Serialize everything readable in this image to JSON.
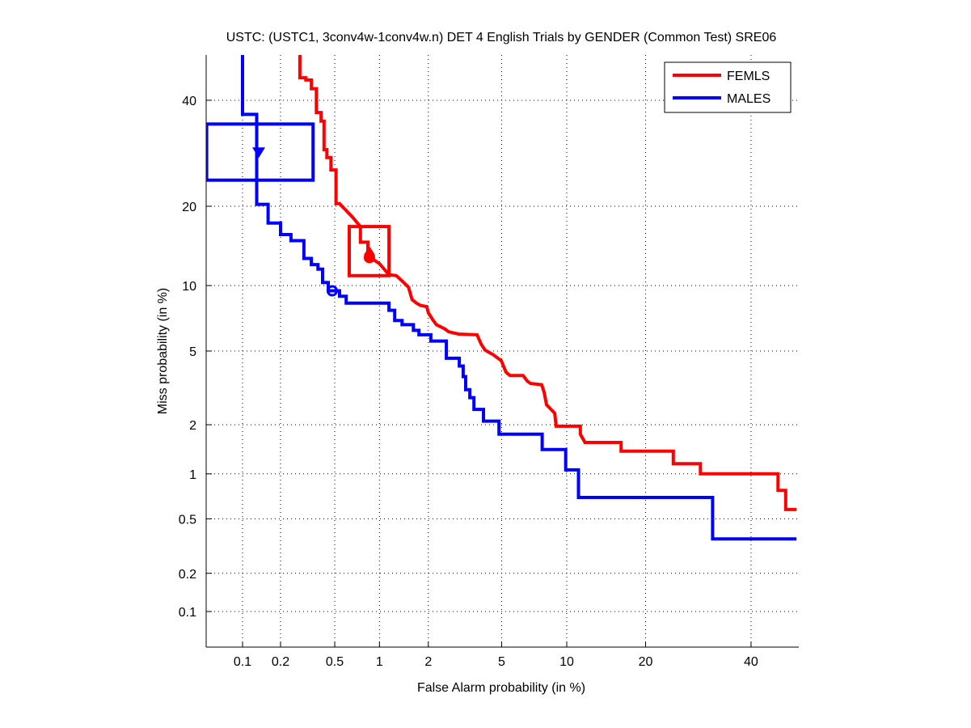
{
  "chart_data": {
    "type": "line",
    "title": "USTC: (USTC1, 3conv4w-1conv4w.n) DET 4 English Trials by GENDER (Common Test) SRE06",
    "xlabel": "False Alarm probability (in %)",
    "ylabel": "Miss probability (in %)",
    "xscale": "normal-deviate",
    "yscale": "normal-deviate",
    "xlim": [
      0.05,
      50
    ],
    "ylim": [
      0.05,
      50
    ],
    "grid": true,
    "xticks": [
      0.1,
      0.2,
      0.5,
      1,
      2,
      5,
      10,
      20,
      40
    ],
    "xtick_labels": [
      "0.1",
      "0.2",
      "0.5",
      "1",
      "2",
      "5",
      "10",
      "20",
      "40"
    ],
    "yticks": [
      0.1,
      0.2,
      0.5,
      1,
      2,
      5,
      10,
      20,
      40
    ],
    "ytick_labels": [
      "0.1",
      "0.2",
      "0.5",
      "1",
      "2",
      "5",
      "10",
      "20",
      "40"
    ],
    "legend_position": "top-right",
    "series": [
      {
        "name": "FEMLS",
        "color": "#ff0000",
        "points": [
          [
            0.28,
            50
          ],
          [
            0.28,
            44.9
          ],
          [
            0.31,
            44.9
          ],
          [
            0.31,
            44.4
          ],
          [
            0.34,
            44.4
          ],
          [
            0.34,
            42.5
          ],
          [
            0.37,
            42.5
          ],
          [
            0.37,
            37.4
          ],
          [
            0.4,
            37.4
          ],
          [
            0.4,
            35.6
          ],
          [
            0.42,
            35.6
          ],
          [
            0.42,
            29.9
          ],
          [
            0.44,
            29.9
          ],
          [
            0.44,
            28.4
          ],
          [
            0.47,
            28.4
          ],
          [
            0.47,
            26.1
          ],
          [
            0.51,
            26.1
          ],
          [
            0.51,
            20.4
          ],
          [
            0.54,
            20.4
          ],
          [
            0.66,
            18.4
          ],
          [
            0.75,
            17.0
          ],
          [
            0.75,
            14.9
          ],
          [
            0.84,
            14.9
          ],
          [
            0.84,
            13.4
          ],
          [
            0.89,
            12.9
          ],
          [
            1.0,
            12.3
          ],
          [
            1.15,
            11.1
          ],
          [
            1.28,
            11.0
          ],
          [
            1.4,
            10.4
          ],
          [
            1.52,
            9.85
          ],
          [
            1.6,
            8.7
          ],
          [
            1.7,
            8.4
          ],
          [
            1.8,
            8.2
          ],
          [
            1.96,
            8.1
          ],
          [
            2.0,
            7.6
          ],
          [
            2.14,
            7.0
          ],
          [
            2.23,
            6.7
          ],
          [
            2.49,
            6.4
          ],
          [
            2.62,
            6.2
          ],
          [
            2.97,
            6.05
          ],
          [
            3.74,
            6.0
          ],
          [
            3.93,
            5.4
          ],
          [
            4.12,
            5.05
          ],
          [
            4.53,
            4.8
          ],
          [
            4.98,
            4.47
          ],
          [
            5.26,
            3.9
          ],
          [
            5.5,
            3.75
          ],
          [
            6.36,
            3.75
          ],
          [
            6.66,
            3.5
          ],
          [
            6.9,
            3.4
          ],
          [
            7.76,
            3.35
          ],
          [
            7.96,
            3.05
          ],
          [
            8.16,
            2.6
          ],
          [
            8.87,
            2.33
          ],
          [
            9.0,
            1.96
          ],
          [
            11.4,
            1.96
          ],
          [
            11.4,
            1.76
          ],
          [
            11.9,
            1.57
          ],
          [
            16.4,
            1.57
          ],
          [
            16.4,
            1.39
          ],
          [
            24.6,
            1.39
          ],
          [
            24.6,
            1.16
          ],
          [
            29.6,
            1.16
          ],
          [
            29.6,
            1.0
          ],
          [
            45.9,
            1.0
          ],
          [
            45.9,
            0.78
          ],
          [
            47.6,
            0.78
          ],
          [
            47.6,
            0.58
          ],
          [
            50,
            0.58
          ]
        ],
        "confidence_box": {
          "fa": [
            0.63,
            1.15
          ],
          "miss": [
            11.0,
            17.0
          ]
        },
        "markers": [
          {
            "shape": "filled-circle",
            "fa": 0.86,
            "miss": 13.0
          },
          {
            "shape": "filled-triangle",
            "fa": 0.86,
            "miss": 13.8
          }
        ]
      },
      {
        "name": "MALES",
        "color": "#0000ff",
        "points": [
          [
            0.1,
            50
          ],
          [
            0.1,
            37
          ],
          [
            0.13,
            37
          ],
          [
            0.13,
            20.3
          ],
          [
            0.16,
            20.3
          ],
          [
            0.16,
            17.5
          ],
          [
            0.2,
            17.5
          ],
          [
            0.2,
            15.9
          ],
          [
            0.24,
            15.9
          ],
          [
            0.24,
            15.1
          ],
          [
            0.3,
            15.1
          ],
          [
            0.3,
            12.9
          ],
          [
            0.34,
            12.9
          ],
          [
            0.34,
            12.2
          ],
          [
            0.38,
            12.2
          ],
          [
            0.38,
            11.7
          ],
          [
            0.41,
            11.7
          ],
          [
            0.41,
            10.3
          ],
          [
            0.45,
            10.3
          ],
          [
            0.45,
            9.5
          ],
          [
            0.54,
            9.5
          ],
          [
            0.54,
            9.0
          ],
          [
            0.6,
            9.0
          ],
          [
            0.6,
            8.4
          ],
          [
            1.15,
            8.4
          ],
          [
            1.15,
            7.8
          ],
          [
            1.25,
            7.8
          ],
          [
            1.25,
            7.0
          ],
          [
            1.39,
            7.0
          ],
          [
            1.39,
            6.7
          ],
          [
            1.63,
            6.7
          ],
          [
            1.63,
            6.3
          ],
          [
            1.76,
            6.3
          ],
          [
            1.76,
            6.0
          ],
          [
            2.07,
            6.0
          ],
          [
            2.07,
            5.6
          ],
          [
            2.54,
            5.6
          ],
          [
            2.54,
            4.6
          ],
          [
            3.0,
            4.6
          ],
          [
            3.0,
            4.2
          ],
          [
            3.15,
            4.2
          ],
          [
            3.15,
            3.7
          ],
          [
            3.25,
            3.7
          ],
          [
            3.25,
            3.15
          ],
          [
            3.42,
            3.15
          ],
          [
            3.42,
            2.85
          ],
          [
            3.6,
            2.85
          ],
          [
            3.6,
            2.45
          ],
          [
            4.04,
            2.45
          ],
          [
            4.04,
            2.1
          ],
          [
            4.85,
            2.1
          ],
          [
            4.85,
            1.76
          ],
          [
            7.8,
            1.76
          ],
          [
            7.8,
            1.42
          ],
          [
            9.9,
            1.42
          ],
          [
            9.9,
            1.06
          ],
          [
            11.2,
            1.06
          ],
          [
            11.2,
            0.7
          ],
          [
            32,
            0.7
          ],
          [
            32,
            0.36
          ],
          [
            50,
            0.36
          ]
        ],
        "confidence_box": {
          "fa": [
            0.05,
            0.35
          ],
          "miss": [
            24.3,
            35.0
          ]
        },
        "markers": [
          {
            "shape": "filled-triangle-down",
            "fa": 0.135,
            "miss": 29.4
          },
          {
            "shape": "open-circle",
            "fa": 0.48,
            "miss": 9.5
          }
        ]
      }
    ]
  }
}
